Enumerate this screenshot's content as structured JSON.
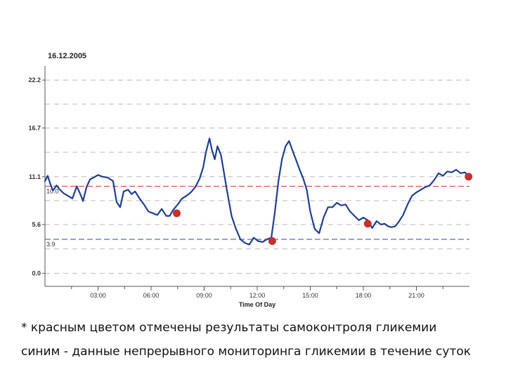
{
  "chart_data": {
    "type": "line",
    "title": "16.12.2005",
    "xlabel": "Time Of Day",
    "ylabel": "",
    "xlim": [
      0,
      24
    ],
    "ylim": [
      -1.5,
      23.5
    ],
    "y_ticks": [
      "22.2",
      "16.7",
      "11.1",
      "5.6",
      "0.0"
    ],
    "y_tick_values": [
      22.2,
      16.7,
      11.1,
      5.6,
      0.0
    ],
    "x_ticks": [
      "03:00",
      "06:00",
      "09:00",
      "12:00",
      "15:00",
      "18:00",
      "21:00"
    ],
    "x_tick_values": [
      3,
      6,
      9,
      12,
      15,
      18,
      21
    ],
    "grid": true,
    "thresholds": [
      {
        "label": "10.0",
        "value": 10.0,
        "color": "#cc3333"
      },
      {
        "label": "3.9",
        "value": 3.9,
        "color": "#3344aa"
      }
    ],
    "series": [
      {
        "type": "line",
        "color": "#1f3f8f",
        "x": [
          0.0,
          0.15,
          0.3,
          0.45,
          0.65,
          0.85,
          1.05,
          1.3,
          1.55,
          1.8,
          2.0,
          2.15,
          2.35,
          2.55,
          2.75,
          3.0,
          3.25,
          3.55,
          3.85,
          4.05,
          4.25,
          4.45,
          4.7,
          4.9,
          5.1,
          5.35,
          5.6,
          5.85,
          6.1,
          6.35,
          6.6,
          6.85,
          7.05,
          7.25,
          7.5,
          7.75,
          8.0,
          8.25,
          8.5,
          8.75,
          8.95,
          9.1,
          9.3,
          9.45,
          9.6,
          9.75,
          9.95,
          10.1,
          10.3,
          10.55,
          10.8,
          11.05,
          11.3,
          11.55,
          11.8,
          12.05,
          12.3,
          12.55,
          12.8,
          13.0,
          13.2,
          13.4,
          13.6,
          13.8,
          14.0,
          14.2,
          14.4,
          14.6,
          14.8,
          15.0,
          15.25,
          15.5,
          15.75,
          16.0,
          16.25,
          16.5,
          16.75,
          17.0,
          17.25,
          17.5,
          17.75,
          18.0,
          18.25,
          18.5,
          18.75,
          19.0,
          19.2,
          19.4,
          19.6,
          19.8,
          20.0,
          20.25,
          20.5,
          20.75,
          21.0,
          21.25,
          21.5,
          21.75,
          22.0,
          22.25,
          22.5,
          22.75,
          23.0,
          23.25,
          23.5,
          23.75,
          23.95
        ],
        "y": [
          10.6,
          11.2,
          10.3,
          9.5,
          10.1,
          9.6,
          9.2,
          8.9,
          8.6,
          10.0,
          9.1,
          8.3,
          9.9,
          10.8,
          11.0,
          11.3,
          11.1,
          11.0,
          10.6,
          8.2,
          7.6,
          9.4,
          9.6,
          9.1,
          9.4,
          8.6,
          7.9,
          7.1,
          6.9,
          6.7,
          7.4,
          6.6,
          6.6,
          7.3,
          7.9,
          8.6,
          8.9,
          9.3,
          9.9,
          10.9,
          12.2,
          13.9,
          15.5,
          14.1,
          13.1,
          14.6,
          13.6,
          11.8,
          9.4,
          6.6,
          5.1,
          3.9,
          3.5,
          3.3,
          4.1,
          3.7,
          3.6,
          3.9,
          4.1,
          7.1,
          10.6,
          13.1,
          14.6,
          15.2,
          14.1,
          13.0,
          11.9,
          10.9,
          9.6,
          7.1,
          5.1,
          4.6,
          6.4,
          7.6,
          7.6,
          8.1,
          7.8,
          7.9,
          7.1,
          6.6,
          6.1,
          6.4,
          6.1,
          5.2,
          6.0,
          5.6,
          5.7,
          5.4,
          5.3,
          5.4,
          5.9,
          6.7,
          7.9,
          8.9,
          9.3,
          9.6,
          9.9,
          10.1,
          10.7,
          11.5,
          11.2,
          11.7,
          11.6,
          11.9,
          11.5,
          11.6,
          11.1
        ]
      },
      {
        "type": "scatter",
        "color": "#c53030",
        "x": [
          7.45,
          12.85,
          18.25,
          23.95
        ],
        "y": [
          6.9,
          3.7,
          5.7,
          11.1
        ]
      }
    ]
  },
  "notes": {
    "line1": "* красным цветом отмечены результаты самоконтроля гликемии",
    "line2": "синим - данные непрерывного мониторинга гликемии в течение суток"
  },
  "colors": {
    "cgm_line": "#1f3f8f",
    "self_check": "#c53030",
    "grid": "#bbbbbb"
  }
}
